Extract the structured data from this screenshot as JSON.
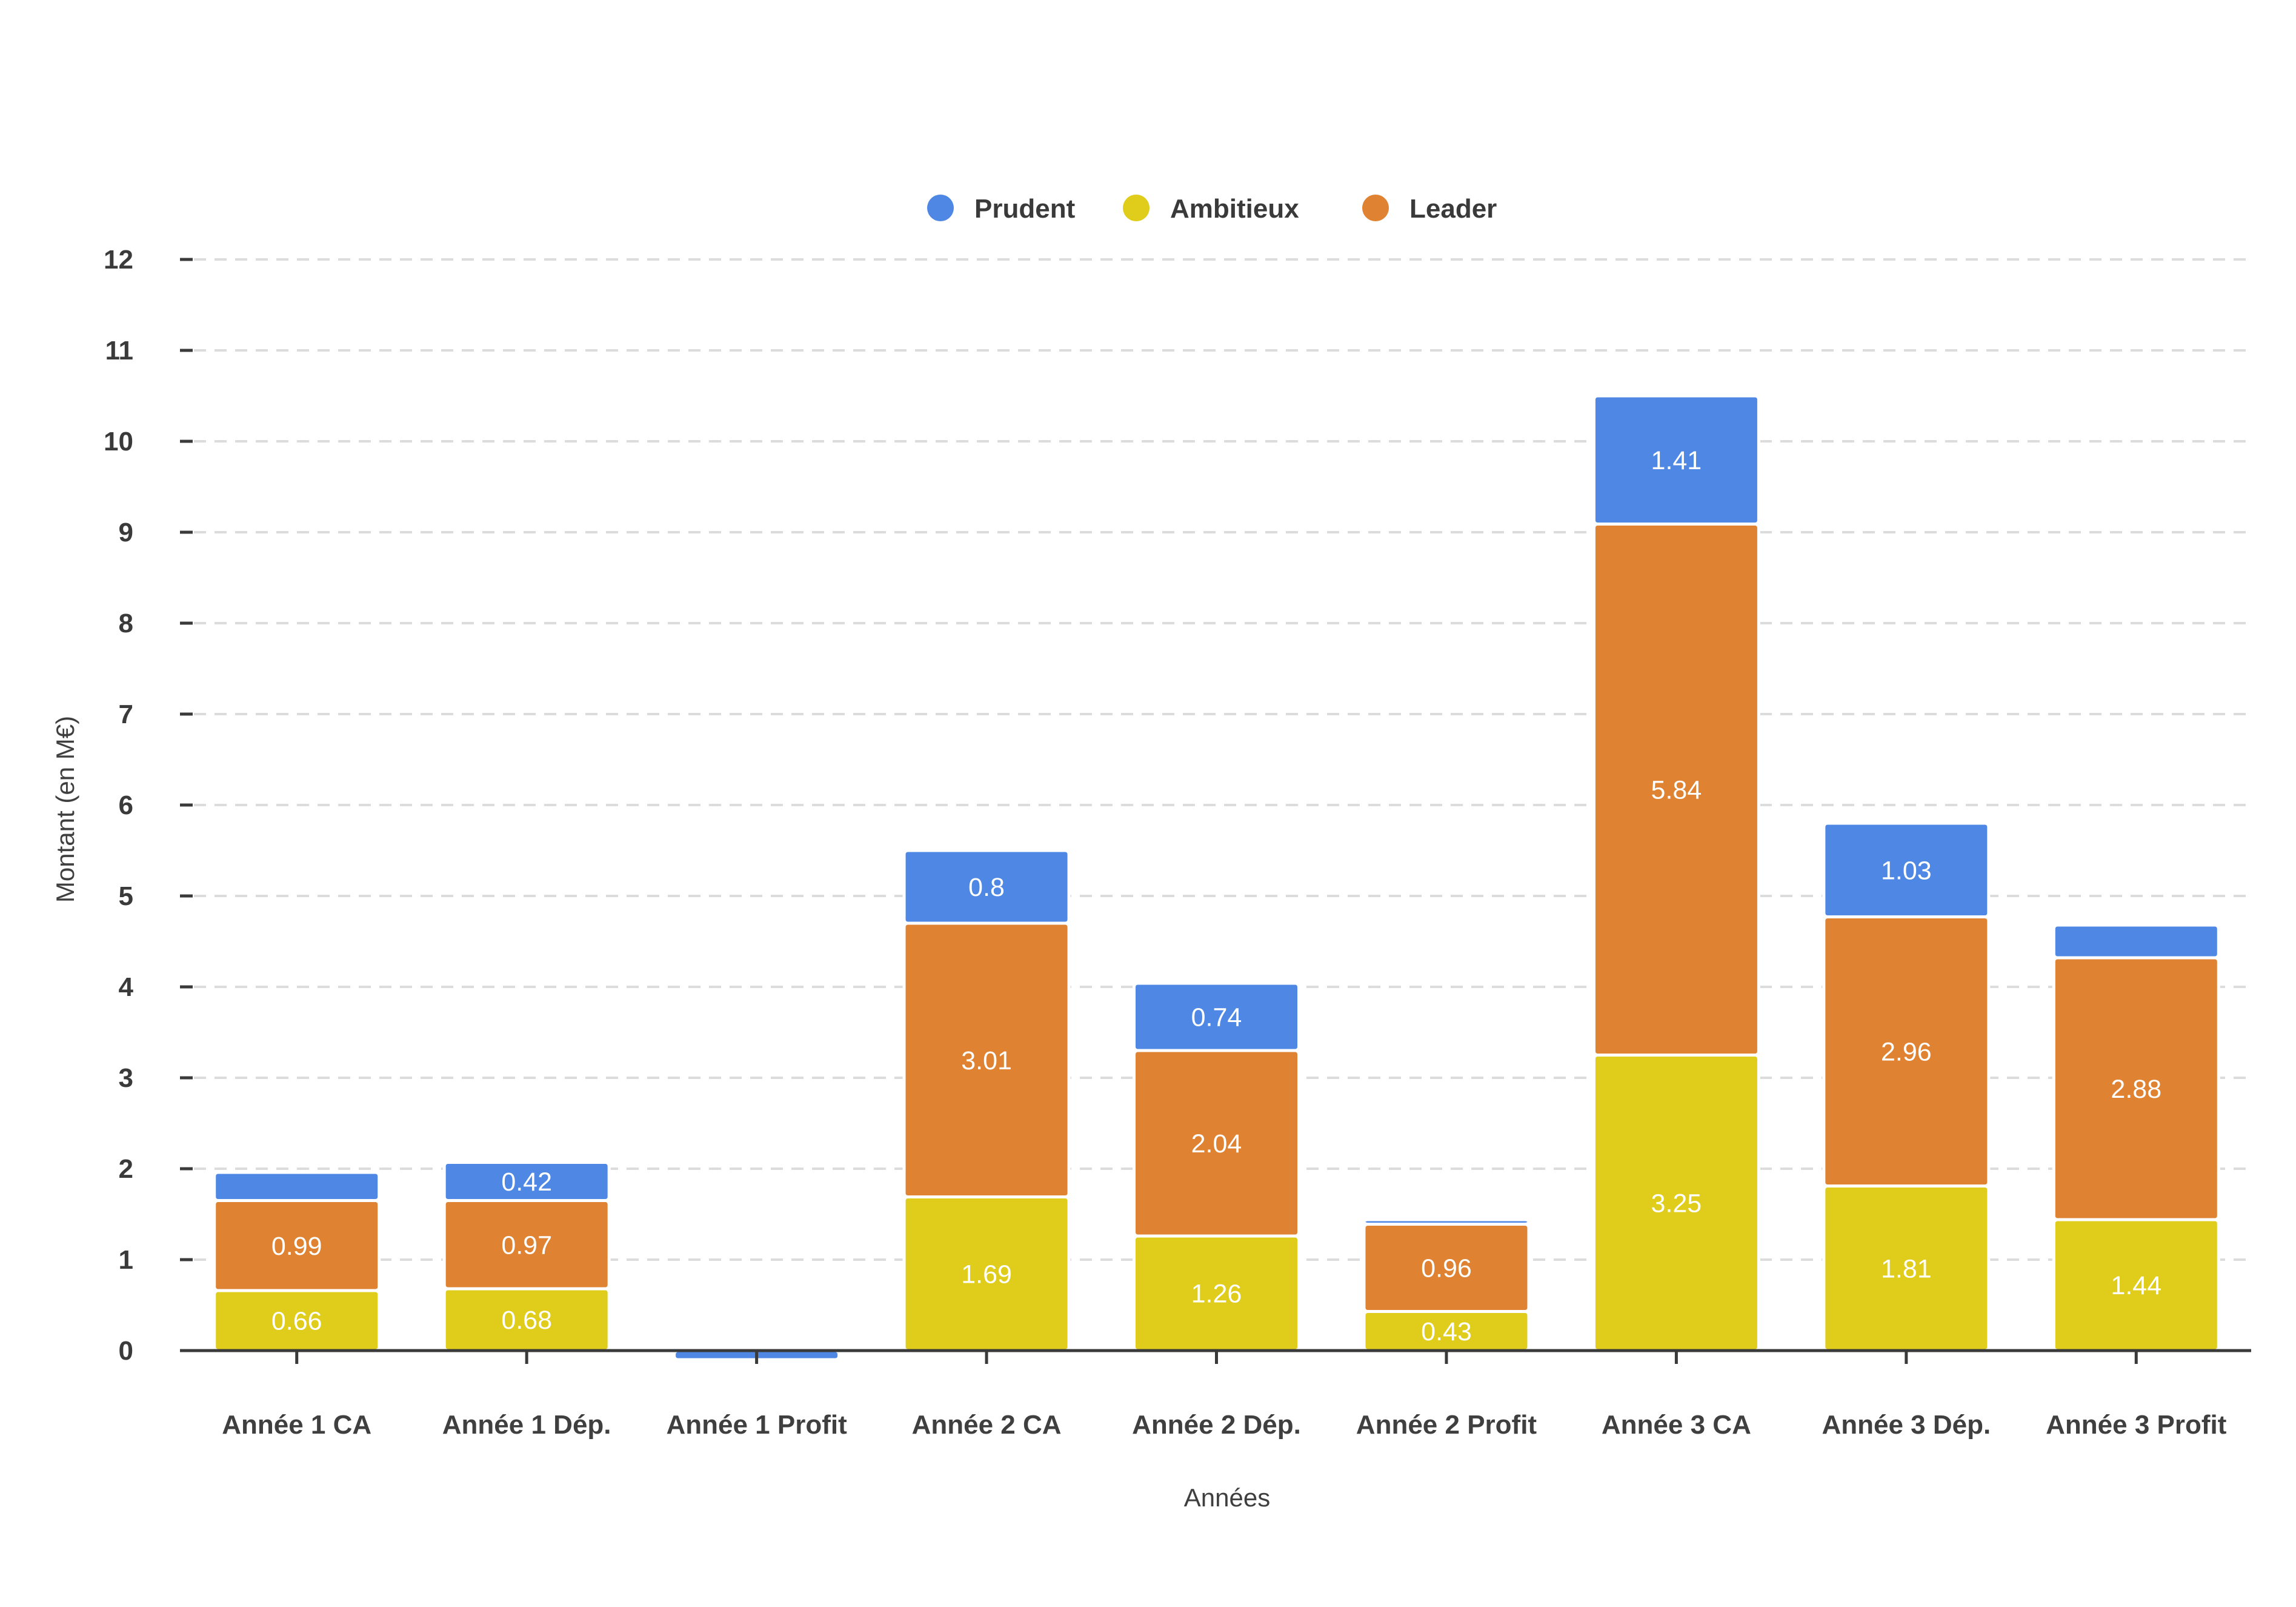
{
  "chart_data": {
    "type": "bar",
    "stacked": true,
    "title": "",
    "xlabel": "Années",
    "ylabel": "Montant (en M€)",
    "ylim": [
      0,
      12
    ],
    "yticks": [
      0,
      1,
      2,
      3,
      4,
      5,
      6,
      7,
      8,
      9,
      10,
      11,
      12
    ],
    "grid": true,
    "legend_position": "top-center",
    "categories": [
      "Année 1 CA",
      "Année 1 Dép.",
      "Année 1 Profit",
      "Année 2 CA",
      "Année 2 Dép.",
      "Année 2 Profit",
      "Année 3 CA",
      "Année 3 Dép.",
      "Année 3 Profit"
    ],
    "legend_order": [
      "Prudent",
      "Ambitieux",
      "Leader"
    ],
    "stack_order": [
      "Ambitieux",
      "Leader",
      "Prudent"
    ],
    "series": [
      {
        "name": "Prudent",
        "color": "#4e88e4",
        "values": [
          0.31,
          0.42,
          -0.1,
          0.8,
          0.74,
          0.05,
          1.41,
          1.03,
          0.36
        ],
        "labels": [
          "",
          "0.42",
          "",
          "0.8",
          "0.74",
          "",
          "1.41",
          "1.03",
          ""
        ]
      },
      {
        "name": "Ambitieux",
        "color": "#dfcc1b",
        "values": [
          0.66,
          0.68,
          0,
          1.69,
          1.26,
          0.43,
          3.25,
          1.81,
          1.44
        ],
        "labels": [
          "0.66",
          "0.68",
          "",
          "1.69",
          "1.26",
          "0.43",
          "3.25",
          "1.81",
          "1.44"
        ]
      },
      {
        "name": "Leader",
        "color": "#df8231",
        "values": [
          0.99,
          0.97,
          0,
          3.01,
          2.04,
          0.96,
          5.84,
          2.96,
          2.88
        ],
        "labels": [
          "0.99",
          "0.97",
          "",
          "3.01",
          "2.04",
          "0.96",
          "5.84",
          "2.96",
          "2.88"
        ]
      }
    ]
  }
}
